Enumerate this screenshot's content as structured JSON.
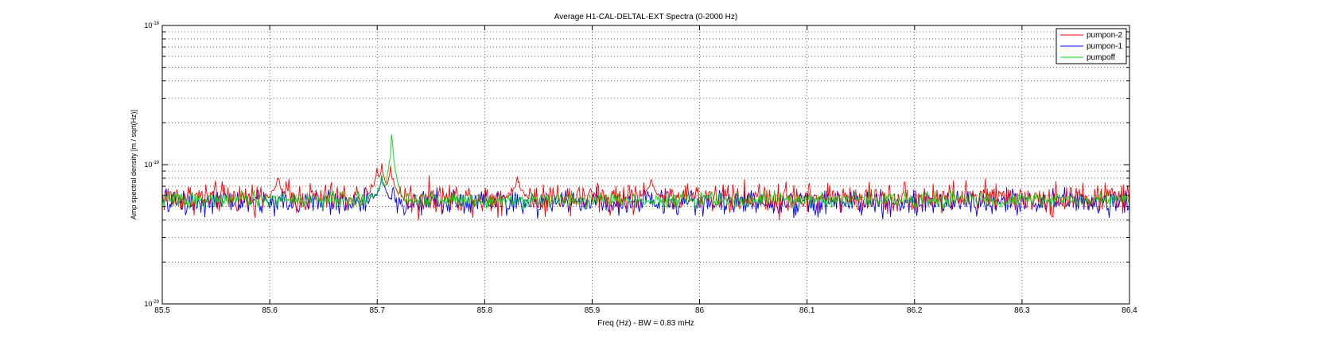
{
  "chart_data": {
    "type": "line",
    "title": "Average H1-CAL-DELTAL-EXT Spectra (0-2000 Hz)",
    "xlabel": "Freq (Hz) - BW = 0.83 mHz",
    "ylabel": "Amp spectral density [m / sqrt(Hz)]",
    "xlim": [
      85.5,
      86.4
    ],
    "ylim": [
      1e-20,
      1e-18
    ],
    "yscale": "log",
    "x_ticks": [
      "85.5",
      "85.6",
      "85.7",
      "85.8",
      "85.9",
      "86",
      "86.1",
      "86.2",
      "86.3",
      "86.4"
    ],
    "y_ticks": [
      {
        "base": "10",
        "exp": "-20",
        "value": 1e-20
      },
      {
        "base": "10",
        "exp": "-19",
        "value": 1e-19
      },
      {
        "base": "10",
        "exp": "-18",
        "value": 1e-18
      }
    ],
    "grid": true,
    "legend_position": "top-right",
    "x_step": 0.0009,
    "series": [
      {
        "name": "pumpon-2",
        "color": "#ff0000",
        "baseline": 5.8e-20,
        "noise_amplitude": 0.12,
        "features": [
          {
            "x": 85.7,
            "value": 9.5e-20
          },
          {
            "x": 85.7045,
            "value": 1.02e-19
          },
          {
            "x": 85.7126,
            "value": 9.8e-20
          },
          {
            "x": 85.6075,
            "value": 8e-20
          },
          {
            "x": 85.8305,
            "value": 8.2e-20
          },
          {
            "x": 85.955,
            "value": 7.8e-20
          },
          {
            "x": 85.7385,
            "value": 4e-20
          },
          {
            "x": 86.0745,
            "value": 4e-20
          },
          {
            "x": 86.3285,
            "value": 4.2e-20
          }
        ]
      },
      {
        "name": "pumpon-1",
        "color": "#0000ff",
        "baseline": 5.4e-20,
        "noise_amplitude": 0.1,
        "features": [
          {
            "x": 85.7045,
            "value": 8.3e-20
          },
          {
            "x": 86.0745,
            "value": 4.4e-20
          },
          {
            "x": 86.2,
            "value": 4.5e-20
          }
        ]
      },
      {
        "name": "pumpoff",
        "color": "#00dd00",
        "baseline": 5.6e-20,
        "noise_amplitude": 0.06,
        "features": [
          {
            "x": 85.7045,
            "value": 8.5e-20
          },
          {
            "x": 85.7135,
            "value": 1.65e-19
          },
          {
            "x": 85.7144,
            "value": 1.45e-19
          }
        ]
      }
    ]
  }
}
